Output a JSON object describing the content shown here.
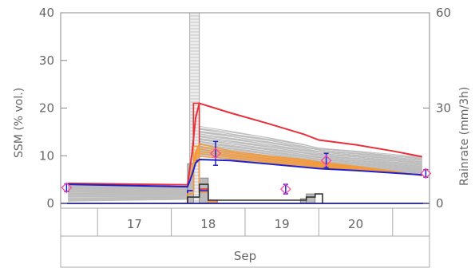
{
  "chart_data": {
    "type": "line",
    "title": "",
    "xlabel": "Sep",
    "ylabel": "SSM (% vol.)",
    "y2label": "Rainrate (mm/3h)",
    "xlim": [
      16.0,
      21.0
    ],
    "ylim": [
      -1,
      40
    ],
    "y2lim": [
      -1.5,
      60
    ],
    "yticks": [
      0,
      10,
      20,
      30,
      40
    ],
    "y2ticks": [
      0,
      30,
      60
    ],
    "x_day_labels": [
      {
        "x": 17,
        "label": "17"
      },
      {
        "x": 18,
        "label": "18"
      },
      {
        "x": 19,
        "label": "19"
      },
      {
        "x": 20,
        "label": "20"
      }
    ],
    "x_day_boundaries": [
      16.5,
      17.5,
      18.5,
      19.5,
      20.5
    ],
    "grid": false,
    "series": [
      {
        "kind": "ssm_median",
        "color": "#e8303a",
        "x": [
          16.1,
          17.72,
          17.78,
          17.83,
          17.88,
          18.3,
          18.8,
          19.3,
          19.5,
          20.0,
          20.5,
          20.9
        ],
        "y": [
          4.2,
          3.9,
          10.5,
          18.0,
          21.0,
          19.0,
          16.8,
          14.5,
          13.3,
          12.3,
          11.0,
          9.8
        ]
      },
      {
        "kind": "ssm_assimilated",
        "color": "#2222cc",
        "x": [
          16.1,
          17.72,
          17.78,
          17.83,
          17.88,
          18.3,
          18.8,
          19.3,
          19.5,
          20.0,
          20.5,
          20.9
        ],
        "y": [
          4.0,
          3.5,
          6.0,
          8.5,
          9.2,
          9.0,
          8.3,
          7.6,
          7.3,
          6.9,
          6.4,
          6.0
        ]
      },
      {
        "kind": "ssm_orange_band",
        "color": "#f39a3d",
        "x": [
          16.1,
          17.72,
          17.78,
          17.83,
          17.88,
          18.3,
          18.8,
          19.3,
          19.5,
          20.0,
          20.5,
          20.9
        ],
        "y": [
          4.0,
          3.5,
          7.0,
          11.0,
          12.5,
          11.0,
          10.0,
          9.2,
          8.7,
          7.8,
          6.8,
          5.8
        ]
      }
    ],
    "ensemble": {
      "color": "#bdbdbd",
      "x": [
        16.1,
        17.72,
        17.78,
        17.83,
        17.88,
        18.3,
        18.8,
        19.3,
        19.5,
        20.0,
        20.5,
        20.9
      ],
      "base": [
        4.0,
        3.5,
        6.0,
        9.0,
        10.0,
        9.2,
        8.4,
        7.6,
        7.3,
        6.9,
        6.4,
        6.0
      ],
      "spread_max": [
        0.5,
        0.8,
        6.0,
        13.0,
        16.0,
        15.0,
        13.8,
        12.4,
        11.7,
        11.0,
        10.2,
        9.6
      ],
      "members": 40
    },
    "observations": [
      {
        "x": 16.08,
        "y": 3.3,
        "err": 0.8
      },
      {
        "x": 18.1,
        "y": 10.5,
        "err": 2.5
      },
      {
        "x": 19.05,
        "y": 3.0,
        "err": 1.0
      },
      {
        "x": 19.6,
        "y": 9.0,
        "err": 1.5
      },
      {
        "x": 20.95,
        "y": 6.3,
        "err": 0.8
      }
    ],
    "observation_color": "#ff44aa",
    "observation_err_color": "#2222cc",
    "rain_bars": [
      {
        "x0": 17.75,
        "x1": 17.88,
        "value": 80,
        "type": "ensemble_max"
      },
      {
        "x0": 17.72,
        "x1": 17.8,
        "value": 12.5,
        "type": "gray"
      },
      {
        "x0": 17.88,
        "x1": 18.0,
        "value": 8.0,
        "type": "gray"
      },
      {
        "x0": 19.25,
        "x1": 19.33,
        "value": 1.5,
        "type": "gray"
      },
      {
        "x0": 19.33,
        "x1": 19.45,
        "value": 3.0,
        "type": "gray"
      }
    ],
    "rain_steps": [
      {
        "color": "#e8303a",
        "x": [
          17.72,
          17.8,
          17.88,
          18.0,
          18.12
        ],
        "y": [
          4.0,
          31.5,
          4.5,
          1.0,
          0
        ]
      },
      {
        "color": "#2222cc",
        "x": [
          17.72,
          17.8,
          17.88,
          18.0,
          18.12
        ],
        "y": [
          4.0,
          13.5,
          4.0,
          0.5,
          0
        ]
      },
      {
        "color": "#f39a3d",
        "x": [
          17.72,
          17.8,
          17.88,
          18.0,
          18.12
        ],
        "y": [
          3.0,
          18.0,
          3.5,
          0.5,
          0
        ]
      },
      {
        "color": "#333333",
        "x": [
          17.72,
          17.8,
          17.88,
          18.0,
          19.25,
          19.33,
          19.45,
          19.55
        ],
        "y": [
          2.0,
          2.0,
          6.0,
          1.0,
          1.0,
          2.0,
          3.0,
          0
        ]
      }
    ]
  }
}
